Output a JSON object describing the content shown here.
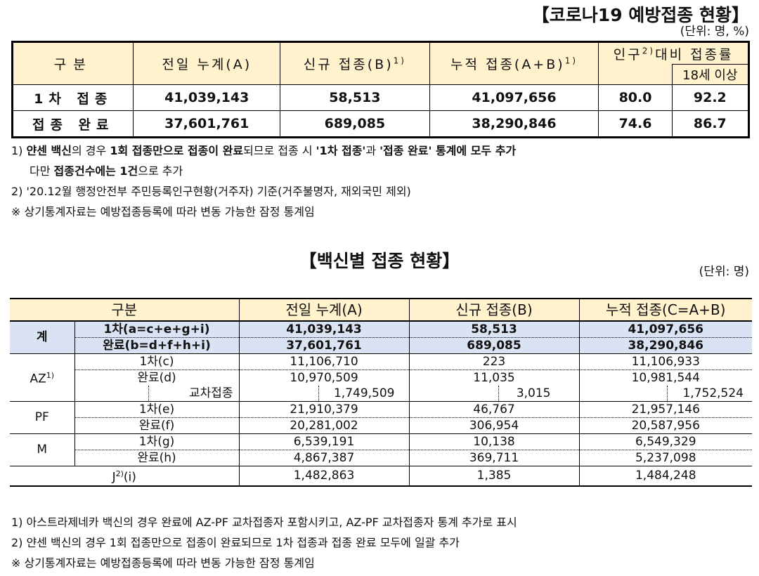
{
  "top": {
    "title": "【코로나19 예방접종 현황】",
    "unit": "(단위: 명, %)",
    "headers": {
      "category": "구분",
      "prev_total": "전일 누계(A)",
      "new": "신규 접종(B)",
      "new_sup": "1)",
      "cumulative": "누적 접종(A+B)",
      "cumulative_sup": "1)",
      "ratio_a": "인구",
      "ratio_sup": "2)",
      "ratio_b": "대비 접종률",
      "ratio_sub": "18세 이상"
    },
    "rows": [
      {
        "label": "1차 접종",
        "prev": "41,039,143",
        "new": "58,513",
        "cum": "41,097,656",
        "pop": "80.0",
        "adult": "92.2"
      },
      {
        "label": "접종 완료",
        "prev": "37,601,761",
        "new": "689,085",
        "cum": "38,290,846",
        "pop": "74.6",
        "adult": "86.7"
      }
    ],
    "notes": {
      "n1_a": "1) ",
      "n1_b": "얀센 백신",
      "n1_c": "의 경우 ",
      "n1_d": "1회 접종만으로 접종이 완료",
      "n1_e": "되므로 접종 시 ",
      "n1_f": "'1차 접종'",
      "n1_g": "과 ",
      "n1_h": "'접종 완료' 통계에 모두 추가",
      "n1b_a": "다만 ",
      "n1b_b": "접종건수에는 1건",
      "n1b_c": "으로 추가",
      "n2": "2) '20.12월 행정안전부 주민등록인구현황(거주자) 기준(거주불명자, 재외국민 제외)",
      "n3": "※ 상기통계자료는 예방접종등록에 따라 변동 가능한 잠정 통계임"
    }
  },
  "vaccine": {
    "title": "【백신별 접종 현황】",
    "unit": "(단위: 명)",
    "headers": {
      "category": "구분",
      "prev": "전일 누계(A)",
      "new": "신규 접종(B)",
      "cum": "누적 접종(C=A+B)"
    },
    "total": {
      "label": "계",
      "rows": [
        {
          "sub": "1차(a=c+e+g+i)",
          "prev": "41,039,143",
          "new": "58,513",
          "cum": "41,097,656"
        },
        {
          "sub": "완료(b=d+f+h+i)",
          "prev": "37,601,761",
          "new": "689,085",
          "cum": "38,290,846"
        }
      ]
    },
    "az": {
      "label": "AZ",
      "sup": "1)",
      "first": {
        "sub": "1차(c)",
        "prev": "11,106,710",
        "new": "223",
        "cum": "11,106,933"
      },
      "done": {
        "sub": "완료(d)",
        "prev": "10,970,509",
        "new": "11,035",
        "cum": "10,981,544"
      },
      "cross": {
        "sub": "교차접종",
        "prev": "1,749,509",
        "new": "3,015",
        "cum": "1,752,524"
      }
    },
    "pf": {
      "label": "PF",
      "first": {
        "sub": "1차(e)",
        "prev": "21,910,379",
        "new": "46,767",
        "cum": "21,957,146"
      },
      "done": {
        "sub": "완료(f)",
        "prev": "20,281,002",
        "new": "306,954",
        "cum": "20,587,956"
      }
    },
    "m": {
      "label": "M",
      "first": {
        "sub": "1차(g)",
        "prev": "6,539,191",
        "new": "10,138",
        "cum": "6,549,329"
      },
      "done": {
        "sub": "완료(h)",
        "prev": "4,867,387",
        "new": "369,711",
        "cum": "5,237,098"
      }
    },
    "j": {
      "label": "J",
      "sup": "2)",
      "suffix": "(i)",
      "prev": "1,482,863",
      "new": "1,385",
      "cum": "1,484,248"
    },
    "notes": {
      "n1": "1) 아스트라제네카 백신의 경우 완료에 AZ-PF 교차접종자 포함시키고, AZ-PF 교차접종자 통계 추가로 표시",
      "n2": "2) 얀센 백신의 경우 1회 접종만으로 접종이 완료되므로 1차 접종과 접종 완료 모두에 일괄 추가",
      "n3": "※ 상기통계자료는 예방접종등록에 따라 변동 가능한 잠정 통계임"
    }
  }
}
